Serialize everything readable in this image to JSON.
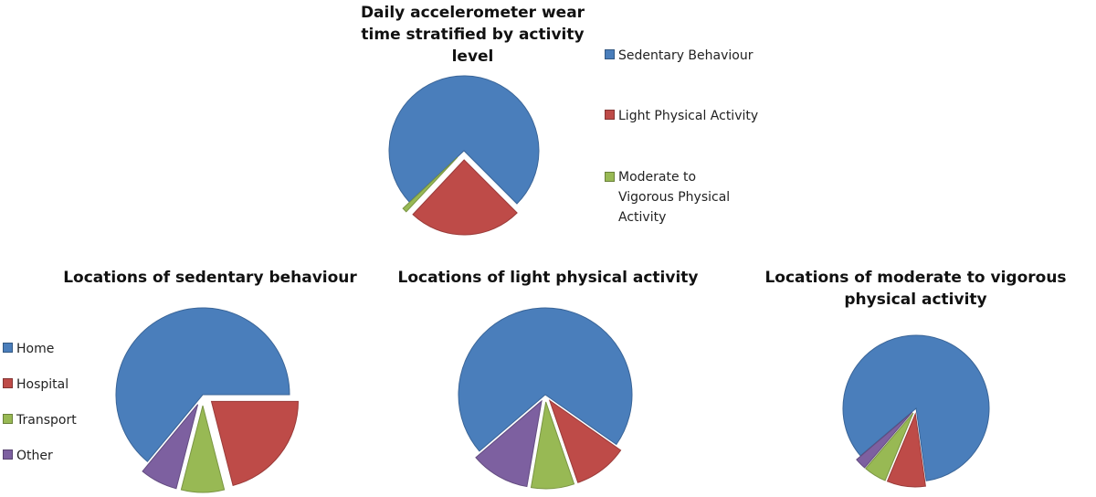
{
  "chart_data": [
    {
      "type": "pie",
      "title": "Daily accelerometer wear time stratified by activity level",
      "categories": [
        "Sedentary Behaviour",
        "Light Physical Activity",
        "Moderate to Vigorous Physical Activity"
      ],
      "values": [
        74.5,
        24.5,
        1.0
      ],
      "legend": "right"
    },
    {
      "type": "pie",
      "title": "Locations of sedentary behaviour",
      "categories": [
        "Home",
        "Hospital",
        "Transport",
        "Other"
      ],
      "values": [
        64,
        21,
        8,
        7
      ],
      "legend": "left"
    },
    {
      "type": "pie",
      "title": "Locations of light physical activity",
      "categories": [
        "Home",
        "Hospital",
        "Transport",
        "Other"
      ],
      "values": [
        71,
        10,
        8,
        11
      ]
    },
    {
      "type": "pie",
      "title": "Locations of moderate to vigorous physical activity",
      "categories": [
        "Home",
        "Hospital",
        "Transport",
        "Other"
      ],
      "values": [
        84,
        8.5,
        5,
        2.5
      ]
    }
  ],
  "colors": [
    "#4a7ebb",
    "#be4b48",
    "#98b954",
    "#7d60a0"
  ],
  "legend_top": {
    "items": [
      "Sedentary Behaviour",
      "Light Physical Activity",
      "Moderate to Vigorous Physical Activity"
    ]
  },
  "legend_bottom": {
    "items": [
      "Home",
      "Hospital",
      "Transport",
      "Other"
    ]
  }
}
